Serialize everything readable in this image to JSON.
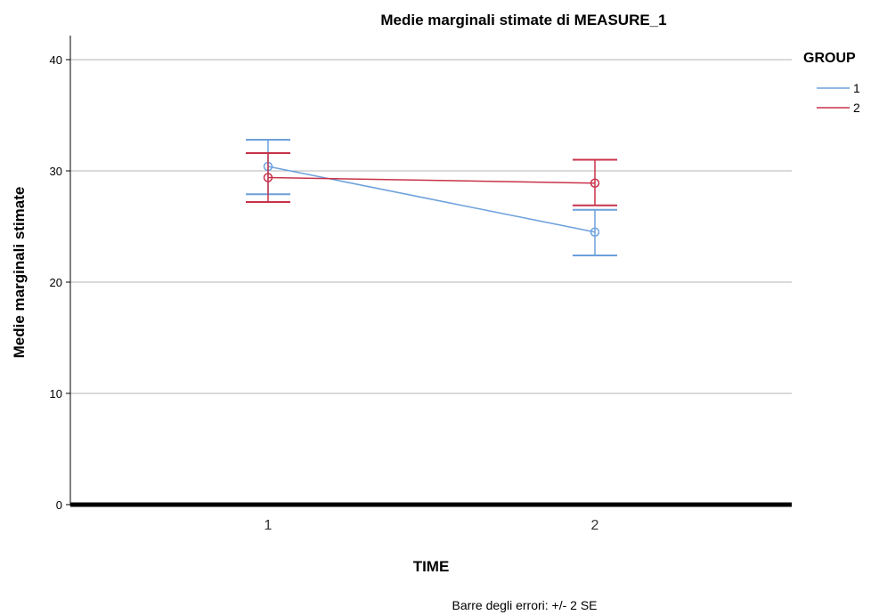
{
  "chart_data": {
    "type": "line",
    "title": "Medie marginali stimate di MEASURE_1",
    "xlabel": "TIME",
    "ylabel": "Medie marginali stimate",
    "categories": [
      "1",
      "2"
    ],
    "ylim": [
      0,
      42
    ],
    "yticks": [
      "0",
      "10",
      "20",
      "30",
      "40"
    ],
    "ytick_values": [
      0,
      10,
      20,
      30,
      40
    ],
    "grid": true,
    "legend_title": "GROUP",
    "legend_position": "top-right",
    "series": [
      {
        "name": "1",
        "color": "#6ca0dc",
        "values": [
          30.4,
          24.5
        ],
        "err_low": [
          27.9,
          22.4
        ],
        "err_high": [
          32.8,
          26.5
        ]
      },
      {
        "name": "2",
        "color": "#c8324a",
        "values": [
          29.4,
          28.9
        ],
        "err_low": [
          27.2,
          26.9
        ],
        "err_high": [
          31.6,
          31.0
        ]
      }
    ],
    "note": "Barre degli errori: +/- 2 SE"
  }
}
